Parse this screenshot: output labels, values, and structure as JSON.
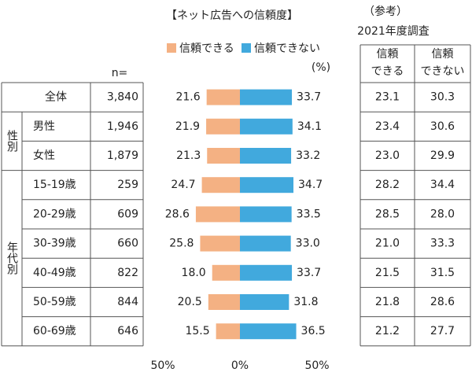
{
  "chart_data": {
    "type": "diverging-bar",
    "title": "【ネット広告への信頼度】",
    "unit_label": "(%)",
    "n_header": "n=",
    "group_labels": [
      "性別",
      "年代別"
    ],
    "categories": [
      "全体",
      "男性",
      "女性",
      "15-19歳",
      "20-29歳",
      "30-39歳",
      "40-49歳",
      "50-59歳",
      "60-69歳"
    ],
    "n": [
      "3,840",
      "1,946",
      "1,879",
      "259",
      "609",
      "660",
      "822",
      "844",
      "646"
    ],
    "series": [
      {
        "name": "信頼できる",
        "color": "#f4b183",
        "side": "left",
        "values": [
          21.6,
          21.9,
          21.3,
          24.7,
          28.6,
          25.8,
          18.0,
          20.5,
          15.5
        ],
        "value_labels": [
          "21.6",
          "21.9",
          "21.3",
          "24.7",
          "28.6",
          "25.8",
          "18.0",
          "20.5",
          "15.5"
        ]
      },
      {
        "name": "信頼できない",
        "color": "#41a9dd",
        "side": "right",
        "values": [
          33.7,
          34.1,
          33.2,
          34.7,
          33.5,
          33.0,
          33.7,
          31.8,
          36.5
        ],
        "value_labels": [
          "33.7",
          "34.1",
          "33.2",
          "34.7",
          "33.5",
          "33.0",
          "33.7",
          "31.8",
          "36.5"
        ]
      }
    ],
    "xlim": [
      -50,
      50
    ],
    "xticks": [
      {
        "value": -50,
        "label": "50%"
      },
      {
        "value": 0,
        "label": "0%"
      },
      {
        "value": 50,
        "label": "50%"
      }
    ],
    "reference": {
      "note": "（参考）",
      "title": "2021年度調査",
      "headers": [
        [
          "信頼",
          "できる"
        ],
        [
          "信頼",
          "できない"
        ]
      ],
      "rows": [
        [
          "23.1",
          "30.3"
        ],
        [
          "23.4",
          "30.6"
        ],
        [
          "23.0",
          "29.9"
        ],
        [
          "28.2",
          "34.4"
        ],
        [
          "28.5",
          "28.0"
        ],
        [
          "21.0",
          "33.3"
        ],
        [
          "21.5",
          "31.5"
        ],
        [
          "21.8",
          "28.6"
        ],
        [
          "21.2",
          "27.7"
        ]
      ]
    }
  }
}
